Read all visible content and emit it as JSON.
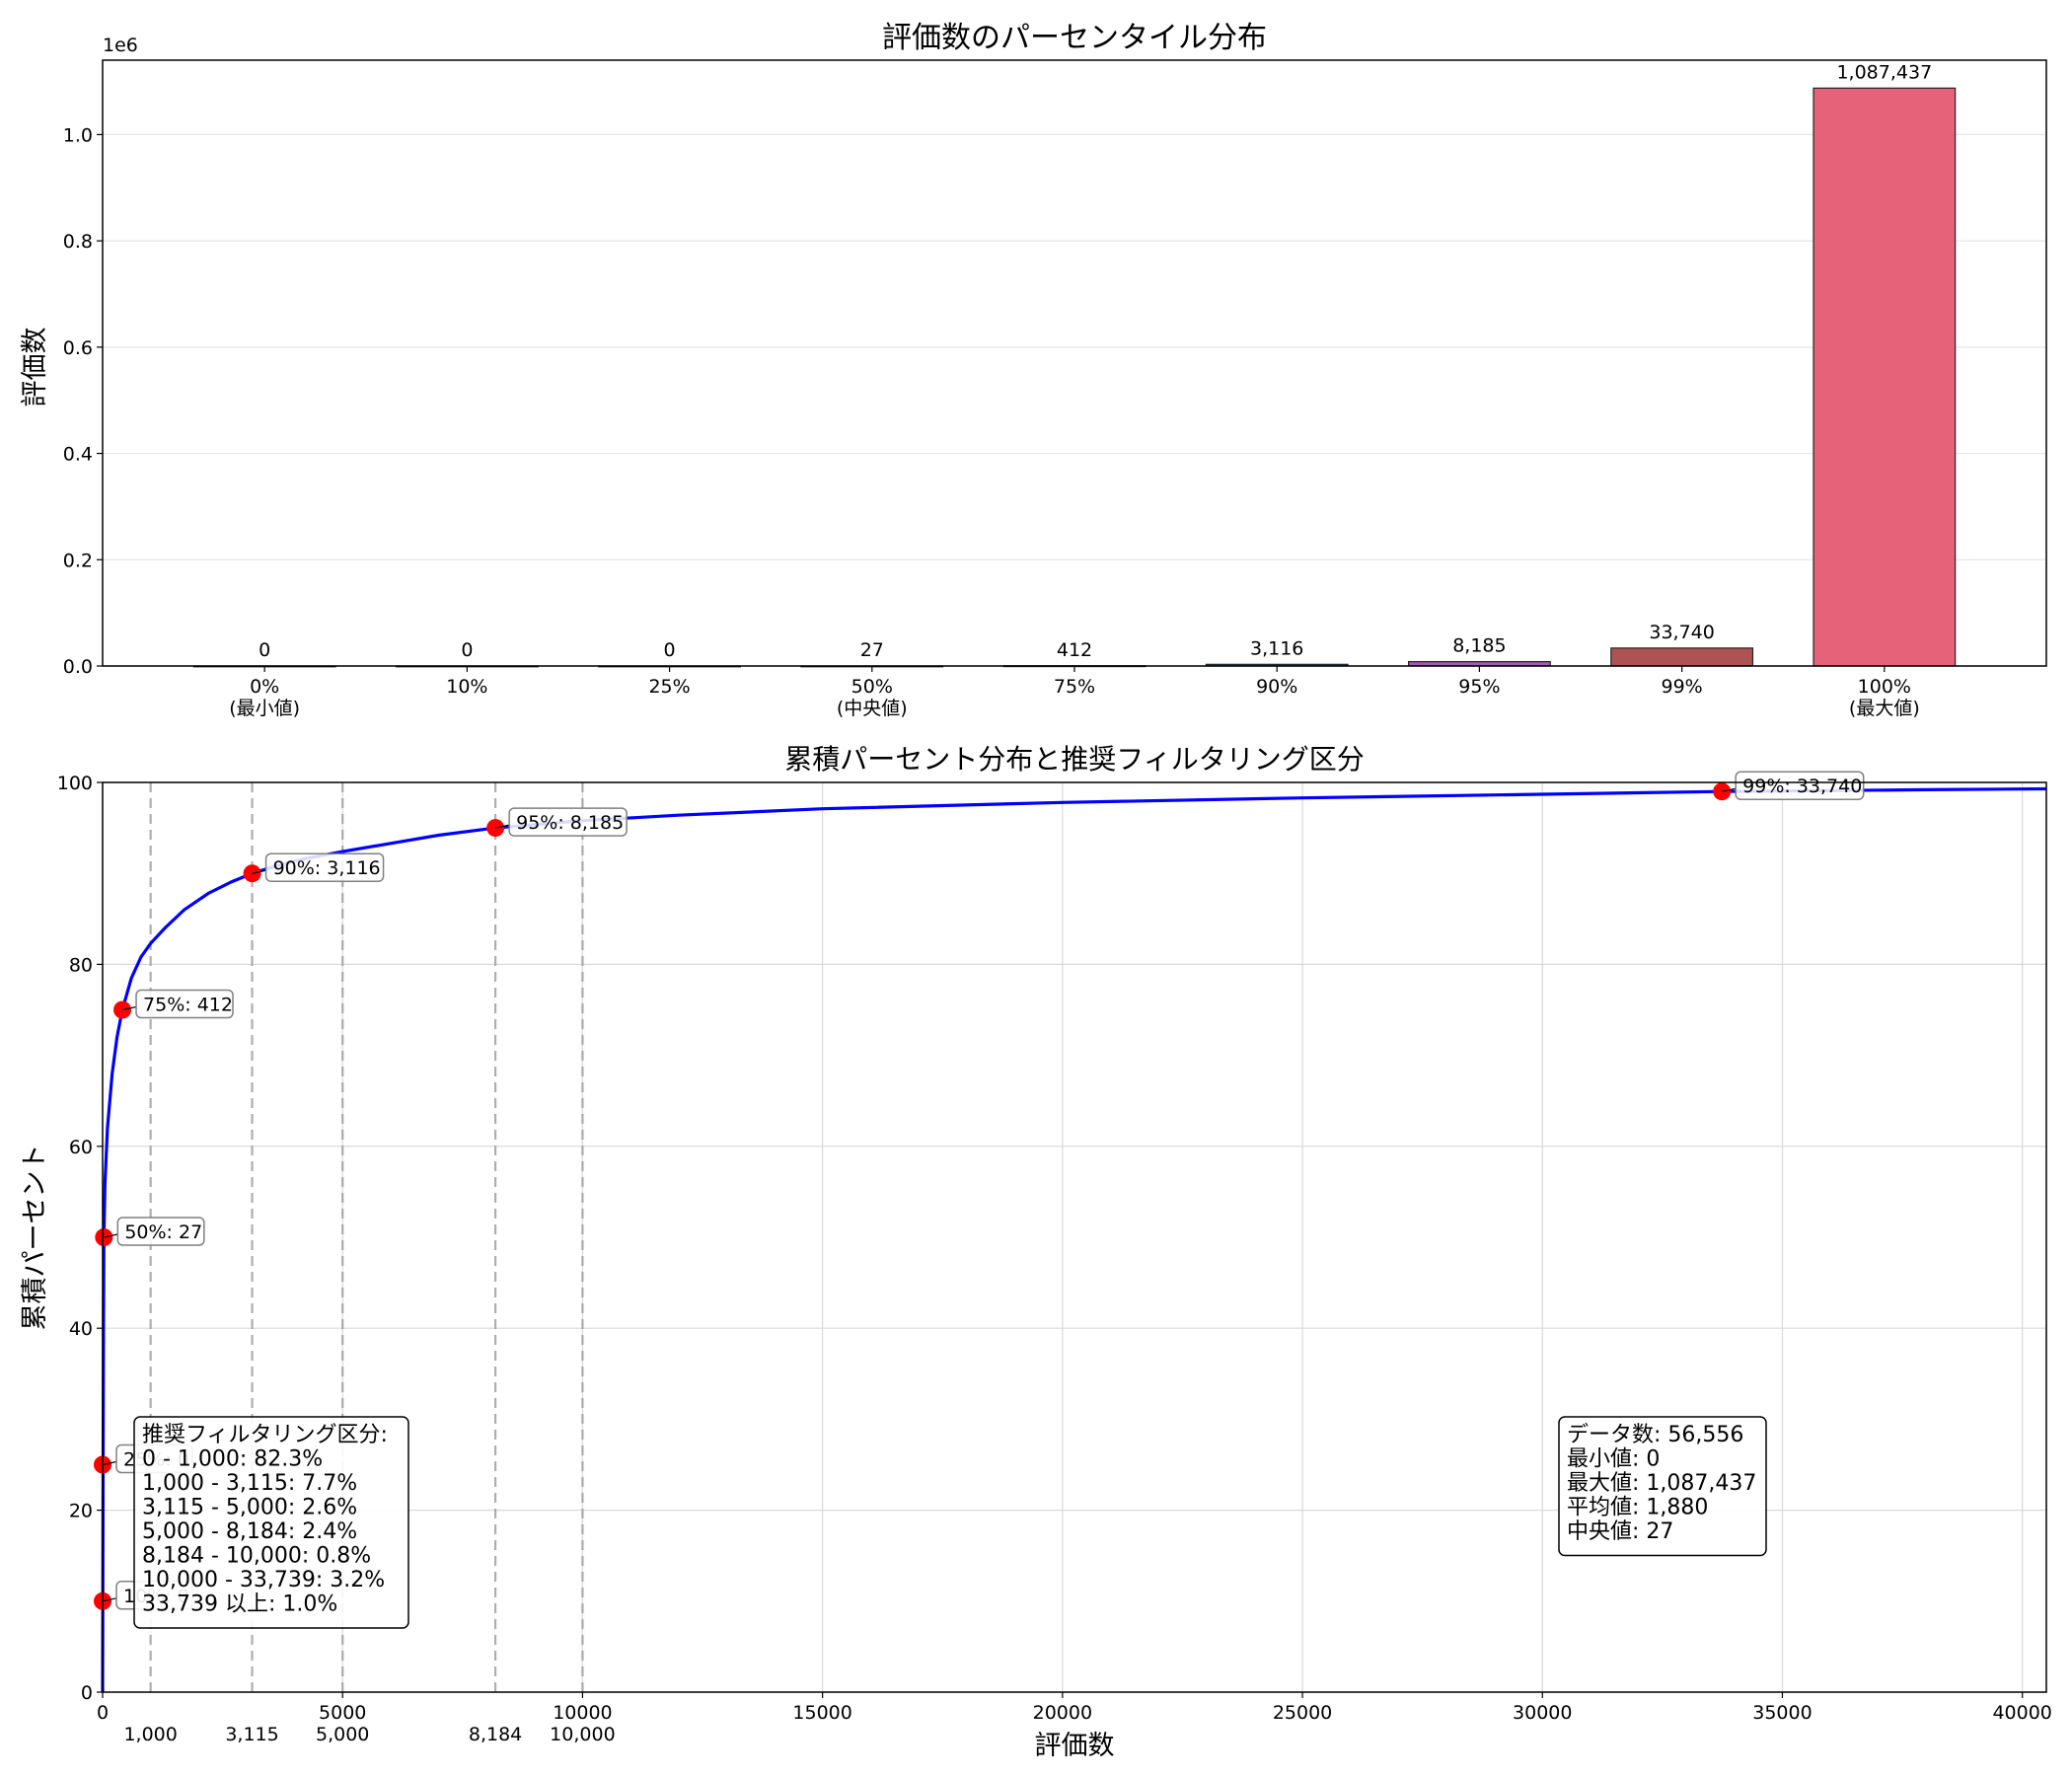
{
  "chart_data": [
    {
      "type": "bar",
      "title": "評価数のパーセンタイル分布",
      "ylabel": "評価数",
      "y_scale_label": "1e6",
      "ylim": [
        0,
        1140000
      ],
      "yticks": [
        0,
        200000,
        400000,
        600000,
        800000,
        1000000
      ],
      "ytick_labels": [
        "0.0",
        "0.2",
        "0.4",
        "0.6",
        "0.8",
        "1.0"
      ],
      "categories": [
        "0%\n(最小値)",
        "10%",
        "25%",
        "50%\n(中央値)",
        "75%",
        "90%",
        "95%",
        "99%",
        "100%\n(最大値)"
      ],
      "values": [
        0,
        0,
        0,
        27,
        412,
        3116,
        8185,
        33740,
        1087437
      ],
      "value_labels": [
        "0",
        "0",
        "0",
        "27",
        "412",
        "3,116",
        "8,185",
        "33,740",
        "1,087,437"
      ],
      "colors": [
        "#9ecae1",
        "#6baed6",
        "#3182bd",
        "#31a354",
        "#74c476",
        "#3a5fb0",
        "#9e4fb0",
        "#a94a4a",
        "#e55a72"
      ],
      "grid": "y"
    },
    {
      "type": "line",
      "title": "累積パーセント分布と推奨フィルタリング区分",
      "xlabel": "評価数",
      "ylabel": "累積パーセント",
      "xlim": [
        0,
        40500
      ],
      "ylim": [
        0,
        100
      ],
      "xticks": [
        0,
        5000,
        10000,
        15000,
        20000,
        25000,
        30000,
        35000,
        40000
      ],
      "yticks": [
        0,
        20,
        40,
        60,
        80,
        100
      ],
      "grid": "both",
      "series": [
        {
          "color": "#0000ff",
          "x": [
            0,
            2,
            5,
            10,
            18,
            27,
            50,
            100,
            200,
            300,
            412,
            600,
            800,
            1000,
            1300,
            1700,
            2200,
            2700,
            3116,
            3600,
            4200,
            5000,
            6000,
            7000,
            8185,
            10000,
            12000,
            15000,
            20000,
            25000,
            30000,
            33740,
            36000,
            38000,
            40500
          ],
          "y": [
            0,
            5,
            10,
            25,
            40,
            50,
            56,
            62,
            68,
            72,
            75,
            78.5,
            80.8,
            82.3,
            84,
            86,
            87.8,
            89.1,
            90,
            90.8,
            91.6,
            92.4,
            93.3,
            94.2,
            95,
            95.8,
            96.4,
            97.1,
            97.8,
            98.3,
            98.7,
            99,
            99.1,
            99.2,
            99.3
          ]
        }
      ],
      "markers": [
        {
          "x": 0,
          "y": 10,
          "label": "10%: 0"
        },
        {
          "x": 0,
          "y": 25,
          "label": "25%: 0"
        },
        {
          "x": 27,
          "y": 50,
          "label": "50%: 27"
        },
        {
          "x": 412,
          "y": 75,
          "label": "75%: 412"
        },
        {
          "x": 3116,
          "y": 90,
          "label": "90%: 3,116"
        },
        {
          "x": 8185,
          "y": 95,
          "label": "95%: 8,185"
        },
        {
          "x": 33740,
          "y": 99,
          "label": "99%: 33,740"
        }
      ],
      "vlines": [
        {
          "x": 1000,
          "label": "1,000"
        },
        {
          "x": 3115,
          "label": "3,115"
        },
        {
          "x": 5000,
          "label": "5,000"
        },
        {
          "x": 8184,
          "label": "8,184"
        },
        {
          "x": 10000,
          "label": "10,000"
        }
      ],
      "filter_box": [
        "推奨フィルタリング区分:",
        "0 - 1,000: 82.3%",
        "1,000 - 3,115: 7.7%",
        "3,115 - 5,000: 2.6%",
        "5,000 - 8,184: 2.4%",
        "8,184 - 10,000: 0.8%",
        "10,000 - 33,739: 3.2%",
        "33,739 以上: 1.0%"
      ],
      "stats_box": [
        "データ数: 56,556",
        "最小値: 0",
        "最大値: 1,087,437",
        "平均値: 1,880",
        "中央値: 27"
      ]
    }
  ]
}
